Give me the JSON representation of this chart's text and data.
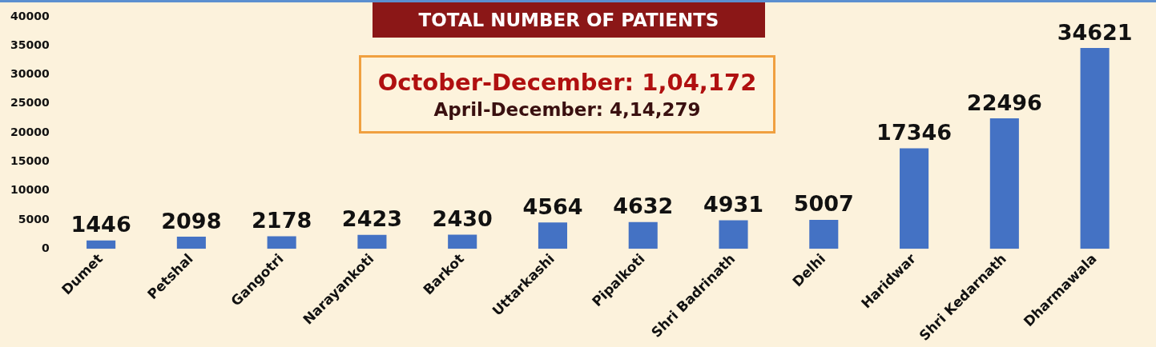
{
  "chart_data": {
    "type": "bar",
    "title": "TOTAL NUMBER OF PATIENTS",
    "annotations": [
      "October-December: 1,04,172",
      "April-December: 4,14,279"
    ],
    "categories": [
      "Dumet",
      "Petshal",
      "Gangotri",
      "Narayankoti",
      "Barkot",
      "Uttarkashi",
      "Pipalkoti",
      "Shri Badrinath",
      "Delhi",
      "Haridwar",
      "Shri Kedarnath",
      "Dharmawala"
    ],
    "values": [
      1446,
      2098,
      2178,
      2423,
      2430,
      4564,
      4632,
      4931,
      5007,
      17346,
      22496,
      34621
    ],
    "color": "#4472c4",
    "ylim": [
      0,
      40000
    ],
    "yticks": [
      0,
      5000,
      10000,
      15000,
      20000,
      25000,
      30000,
      35000,
      40000
    ],
    "grid": false,
    "legend": false,
    "data_labels": true
  }
}
